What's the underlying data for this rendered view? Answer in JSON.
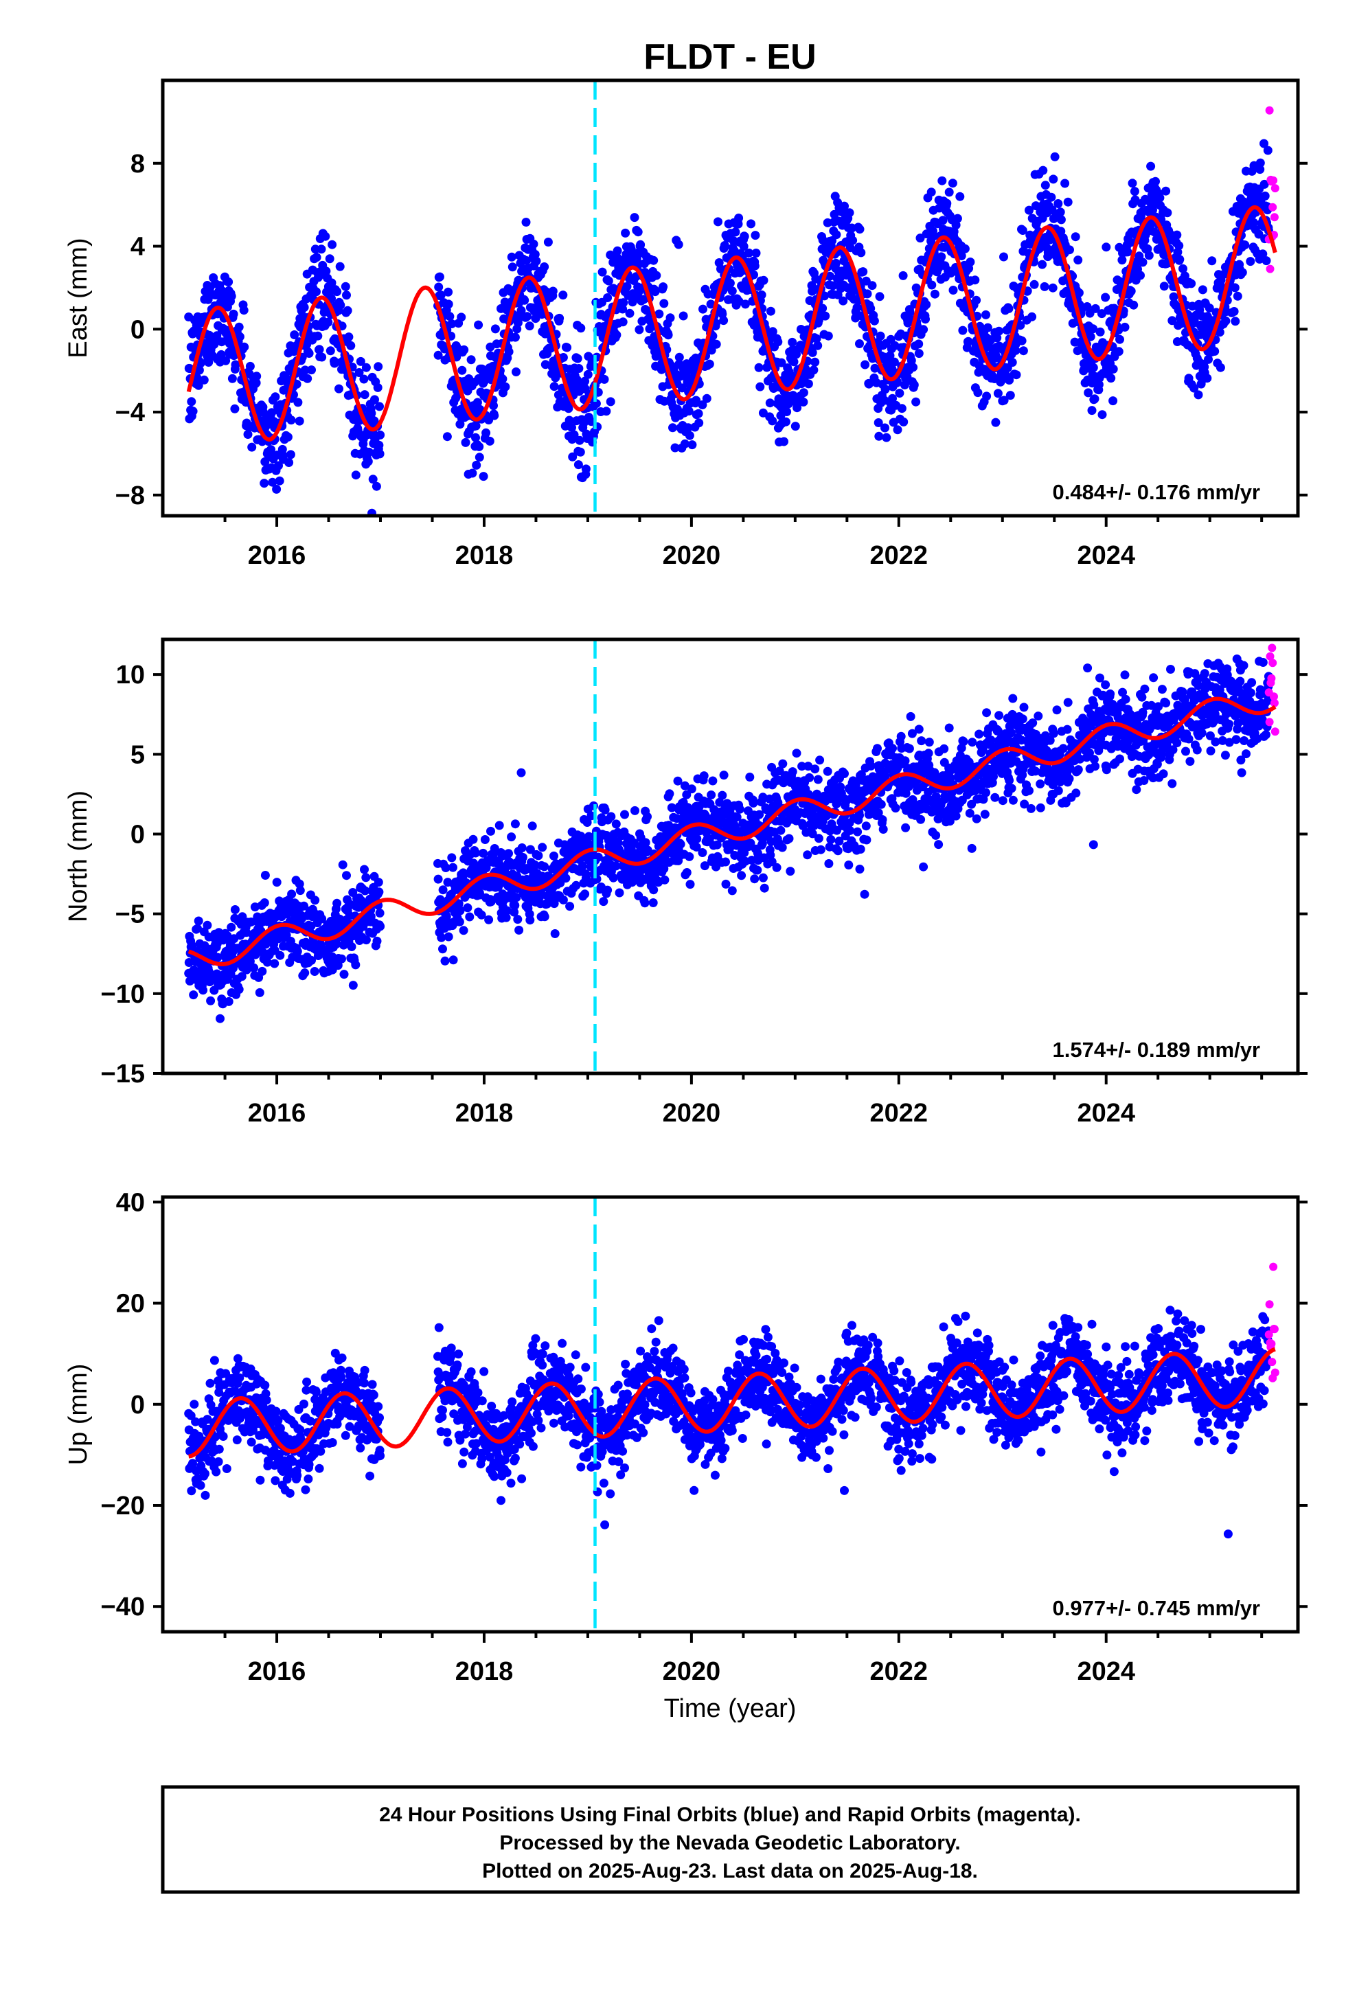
{
  "title": "FLDT - EU",
  "colors": {
    "final_orbits": "#0000ff",
    "rapid_orbits": "#ff00ff",
    "model_fit": "#ff0000",
    "equipment_change": "#00e5ff",
    "frame": "#000000"
  },
  "xaxis": {
    "label": "Time (year)",
    "range": [
      2014.9,
      2025.85
    ],
    "ticks": [
      2016,
      2018,
      2020,
      2022,
      2024
    ],
    "tick_labels": [
      "2016",
      "2018",
      "2020",
      "2022",
      "2024"
    ]
  },
  "footer": {
    "lines": [
      "24 Hour Positions Using Final Orbits (blue) and Rapid Orbits (magenta).",
      "Processed by the Nevada Geodetic Laboratory.",
      "Plotted on 2025-Aug-23. Last data on 2025-Aug-18."
    ]
  },
  "chart_data": [
    {
      "type": "scatter",
      "component": "east",
      "ylabel": "East (mm)",
      "ylim": [
        -9,
        12
      ],
      "yticks": [
        -8,
        -4,
        0,
        4,
        8
      ],
      "ytick_labels": [
        "−8",
        "−4",
        "0",
        "4",
        "8"
      ],
      "rate_text": "0.484+/- 0.176 mm/yr",
      "rate_mm_per_yr": 0.484,
      "rate_sigma": 0.176,
      "equipment_change_year": 2019.07,
      "data_span": [
        2015.15,
        2025.63
      ],
      "data_gap": [
        2017.0,
        2017.55
      ],
      "rapid_span": [
        2025.57,
        2025.63
      ],
      "fit": {
        "offset": -2.4,
        "trend": 0.484,
        "amplitude": 3.3,
        "peak_phase": 0.43
      },
      "scatter_sigma": 1.3,
      "series": [
        {
          "name": "Final Orbits (blue)",
          "color": "#0000ff"
        },
        {
          "name": "Rapid Orbits (magenta)",
          "color": "#ff00ff"
        },
        {
          "name": "Model fit",
          "color": "#ff0000"
        }
      ]
    },
    {
      "type": "scatter",
      "component": "north",
      "ylabel": "North (mm)",
      "ylim": [
        -15,
        12.2
      ],
      "yticks": [
        -15,
        -10,
        -5,
        0,
        5,
        10
      ],
      "ytick_labels": [
        "−15",
        "−10",
        "−5",
        "0",
        "5",
        "10"
      ],
      "rate_text": "1.574+/- 0.189 mm/yr",
      "rate_mm_per_yr": 1.574,
      "rate_sigma": 0.189,
      "equipment_change_year": 2019.07,
      "data_span": [
        2015.15,
        2025.63
      ],
      "data_gap": [
        2017.0,
        2017.55
      ],
      "rapid_span": [
        2025.57,
        2025.63
      ],
      "fit": {
        "offset": -7.9,
        "trend": 1.574,
        "amplitude": 0.8,
        "peak_phase": 0.02
      },
      "scatter_sigma": 1.3,
      "series": [
        {
          "name": "Final Orbits (blue)",
          "color": "#0000ff"
        },
        {
          "name": "Rapid Orbits (magenta)",
          "color": "#ff00ff"
        },
        {
          "name": "Model fit",
          "color": "#ff0000"
        }
      ]
    },
    {
      "type": "scatter",
      "component": "up",
      "ylabel": "Up (mm)",
      "ylim": [
        -45,
        41
      ],
      "yticks": [
        -40,
        -20,
        0,
        20,
        40
      ],
      "ytick_labels": [
        "−40",
        "−20",
        "0",
        "20",
        "40"
      ],
      "rate_text": "0.977+/- 0.745 mm/yr",
      "rate_mm_per_yr": 0.977,
      "rate_sigma": 0.745,
      "equipment_change_year": 2019.07,
      "data_span": [
        2015.15,
        2025.63
      ],
      "data_gap": [
        2017.0,
        2017.55
      ],
      "rapid_span": [
        2025.57,
        2025.63
      ],
      "fit": {
        "offset": -4.8,
        "trend": 0.977,
        "amplitude": 5.5,
        "peak_phase": 0.65
      },
      "scatter_sigma": 4.2,
      "series": [
        {
          "name": "Final Orbits (blue)",
          "color": "#0000ff"
        },
        {
          "name": "Rapid Orbits (magenta)",
          "color": "#ff00ff"
        },
        {
          "name": "Model fit",
          "color": "#ff0000"
        }
      ]
    }
  ]
}
